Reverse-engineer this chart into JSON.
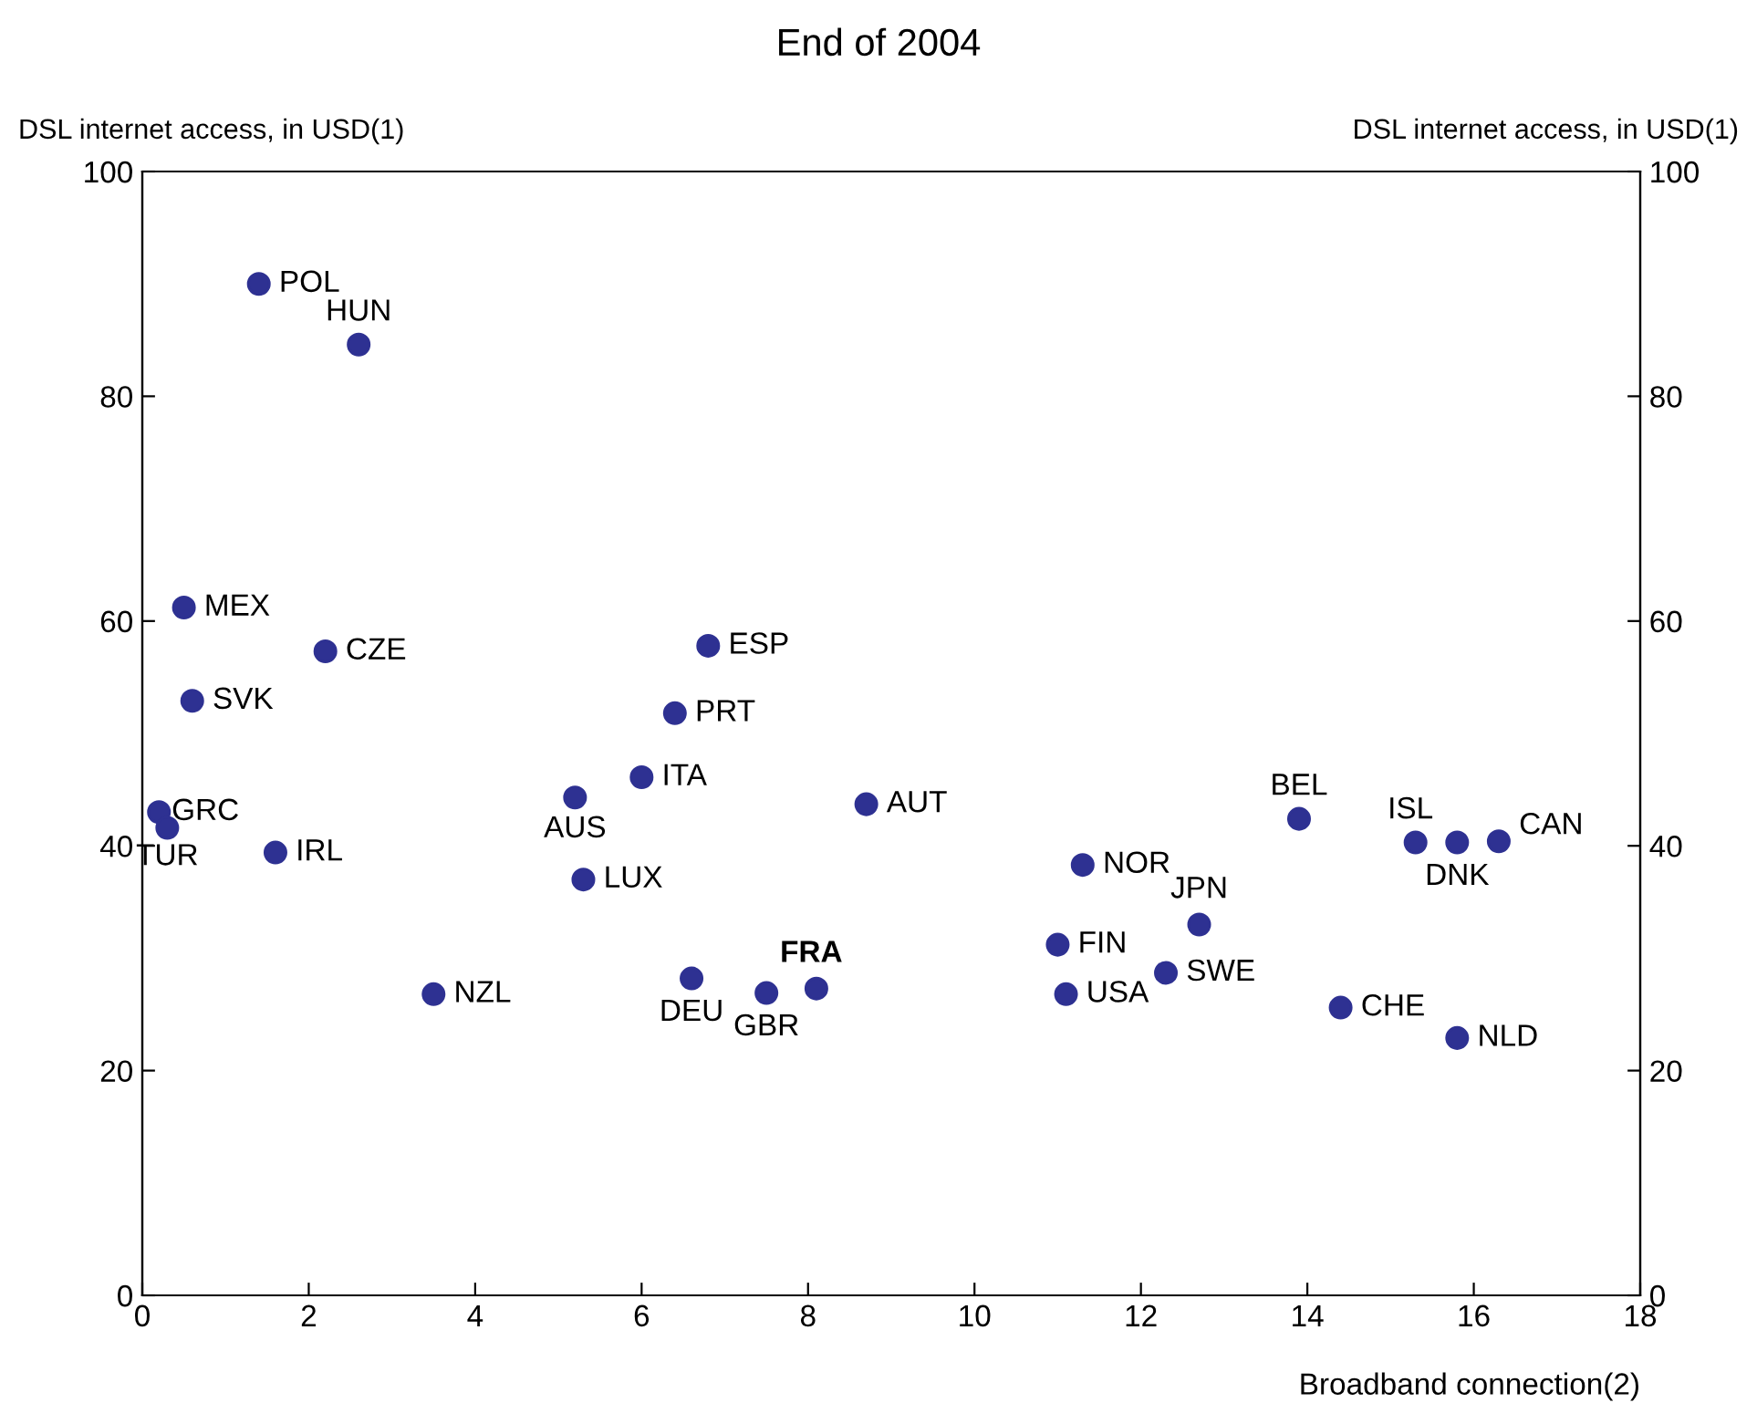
{
  "chart_data": {
    "type": "scatter",
    "title": "End of 2004",
    "xlabel": "Broadband connection(2)",
    "ylabel": "DSL internet access, in USD(1)",
    "y2label": "DSL internet access, in USD(1)",
    "xlim": [
      0,
      18
    ],
    "xticks": [
      0,
      2,
      4,
      6,
      8,
      10,
      12,
      14,
      16,
      18
    ],
    "ylim": [
      0,
      100
    ],
    "yticks": [
      0,
      20,
      40,
      60,
      80,
      100
    ],
    "y2lim": [
      0,
      100
    ],
    "y2ticks": [
      0,
      20,
      40,
      60,
      80,
      100
    ],
    "grid": false,
    "legend": false,
    "marker": "circle",
    "series": [
      {
        "color": "#2e3192",
        "x": [
          1.4,
          2.6,
          0.5,
          2.2,
          0.6,
          0.2,
          0.3,
          1.6,
          3.5,
          6.8,
          6.4,
          6.0,
          5.2,
          5.3,
          6.6,
          7.5,
          8.1,
          8.7,
          11.3,
          11.0,
          11.1,
          12.7,
          12.3,
          13.9,
          15.3,
          15.8,
          16.3,
          14.4,
          15.8
        ],
        "values": [
          90,
          84.6,
          61.2,
          57.3,
          52.9,
          43.0,
          41.6,
          39.4,
          26.8,
          57.8,
          51.8,
          46.1,
          44.3,
          37.0,
          28.2,
          26.9,
          27.3,
          43.7,
          38.3,
          31.2,
          26.8,
          33.0,
          28.7,
          42.4,
          40.3,
          40.3,
          40.4,
          25.6,
          22.9
        ]
      }
    ],
    "annotations": [
      {
        "text": "POL",
        "x": 1.4,
        "y": 90
      },
      {
        "text": "HUN",
        "x": 2.6,
        "y": 84.6
      },
      {
        "text": "MEX",
        "x": 0.5,
        "y": 61.2
      },
      {
        "text": "CZE",
        "x": 2.2,
        "y": 57.3
      },
      {
        "text": "SVK",
        "x": 0.6,
        "y": 52.9
      },
      {
        "text": "GRC",
        "x": 0.2,
        "y": 43.0
      },
      {
        "text": "TUR",
        "x": 0.3,
        "y": 41.6
      },
      {
        "text": "IRL",
        "x": 1.6,
        "y": 39.4
      },
      {
        "text": "NZL",
        "x": 3.5,
        "y": 26.8
      },
      {
        "text": "ESP",
        "x": 6.8,
        "y": 57.8
      },
      {
        "text": "PRT",
        "x": 6.4,
        "y": 51.8
      },
      {
        "text": "ITA",
        "x": 6.0,
        "y": 46.1
      },
      {
        "text": "AUS",
        "x": 5.2,
        "y": 44.3
      },
      {
        "text": "LUX",
        "x": 5.3,
        "y": 37.0
      },
      {
        "text": "DEU",
        "x": 6.6,
        "y": 28.2
      },
      {
        "text": "GBR",
        "x": 7.5,
        "y": 26.9
      },
      {
        "text": "FRA",
        "x": 8.1,
        "y": 27.3
      },
      {
        "text": "AUT",
        "x": 8.7,
        "y": 43.7
      },
      {
        "text": "NOR",
        "x": 11.3,
        "y": 38.3
      },
      {
        "text": "FIN",
        "x": 11.0,
        "y": 31.2
      },
      {
        "text": "USA",
        "x": 11.1,
        "y": 26.8
      },
      {
        "text": "JPN",
        "x": 12.7,
        "y": 33.0
      },
      {
        "text": "SWE",
        "x": 12.3,
        "y": 28.7
      },
      {
        "text": "BEL",
        "x": 13.9,
        "y": 42.4
      },
      {
        "text": "ISL",
        "x": 15.3,
        "y": 40.3
      },
      {
        "text": "DNK",
        "x": 15.8,
        "y": 40.3
      },
      {
        "text": "CAN",
        "x": 16.3,
        "y": 40.4
      },
      {
        "text": "CHE",
        "x": 14.4,
        "y": 25.6
      },
      {
        "text": "NLD",
        "x": 15.8,
        "y": 22.9
      }
    ]
  }
}
